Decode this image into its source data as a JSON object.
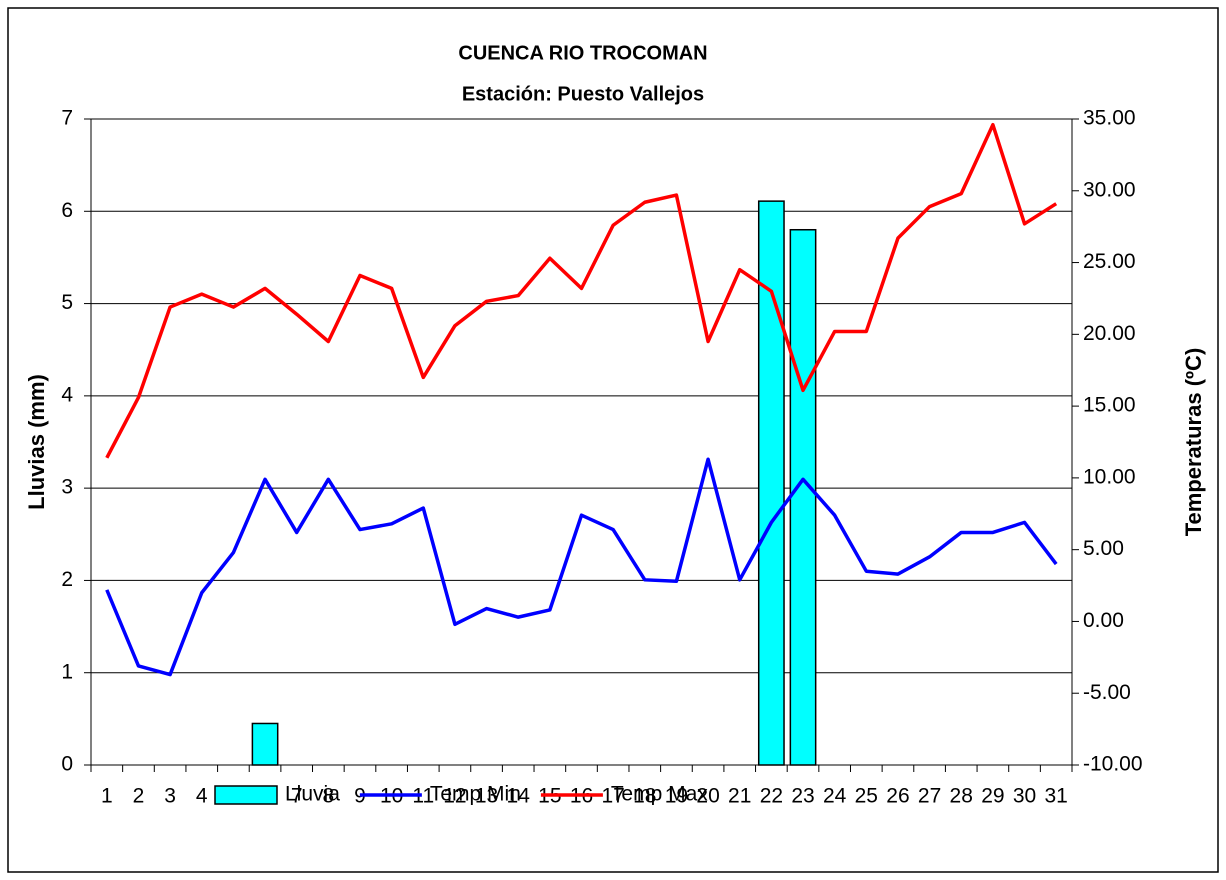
{
  "chart_data": {
    "type": "bar_line",
    "title": "CUENCA RIO TROCOMAN",
    "subtitle": "Estación: Puesto Vallejos",
    "ylabel": "Lluvias (mm)",
    "y2label": "Temperaturas (ºC)",
    "categories": [
      "1",
      "2",
      "3",
      "4",
      "5",
      "6",
      "7",
      "8",
      "9",
      "10",
      "11",
      "12",
      "13",
      "14",
      "15",
      "16",
      "17",
      "18",
      "19",
      "20",
      "21",
      "22",
      "23",
      "24",
      "25",
      "26",
      "27",
      "28",
      "29",
      "30",
      "31"
    ],
    "series": [
      {
        "name": "Lluvia",
        "type": "bar",
        "color": "#00ffff",
        "values": [
          0,
          0,
          0,
          0,
          0,
          0.45,
          0,
          0,
          0,
          0,
          0,
          0,
          0,
          0,
          0,
          0,
          0,
          0,
          0,
          0,
          0,
          6.11,
          5.8,
          0,
          0,
          0,
          0,
          0,
          0,
          0,
          0
        ]
      },
      {
        "name": "Temp Min",
        "type": "line",
        "axis": "y2",
        "color": "#0000ff",
        "values": [
          2.2,
          -3.1,
          -3.7,
          2.0,
          4.8,
          9.9,
          6.2,
          9.9,
          6.4,
          6.8,
          7.9,
          -0.2,
          0.9,
          0.3,
          0.8,
          7.4,
          6.4,
          2.9,
          2.8,
          11.3,
          2.9,
          6.9,
          9.9,
          7.4,
          3.5,
          3.3,
          4.5,
          6.2,
          6.2,
          6.9,
          4.0
        ]
      },
      {
        "name": "Temp Max",
        "type": "line",
        "axis": "y2",
        "color": "#ff0000",
        "values": [
          11.4,
          15.6,
          21.9,
          22.8,
          21.9,
          23.2,
          21.4,
          19.5,
          24.1,
          23.2,
          17.0,
          20.6,
          22.3,
          22.7,
          25.3,
          23.2,
          27.6,
          29.2,
          29.7,
          19.5,
          24.5,
          23.0,
          16.1,
          20.2,
          20.2,
          26.7,
          28.9,
          29.8,
          34.6,
          27.7,
          29.1
        ]
      }
    ],
    "ylim": [
      0,
      7
    ],
    "yticks": [
      0,
      1,
      2,
      3,
      4,
      5,
      6,
      7
    ],
    "y2lim": [
      -10,
      35
    ],
    "y2ticks": [
      {
        "value": -10,
        "label": "-10.00"
      },
      {
        "value": -5,
        "label": "-5.00"
      },
      {
        "value": 0,
        "label": "0.00"
      },
      {
        "value": 5,
        "label": "5.00"
      },
      {
        "value": 10,
        "label": "10.00"
      },
      {
        "value": 15,
        "label": "15.00"
      },
      {
        "value": 20,
        "label": "20.00"
      },
      {
        "value": 25,
        "label": "25.00"
      },
      {
        "value": 30,
        "label": "30.00"
      },
      {
        "value": 35,
        "label": "35.00"
      }
    ],
    "grid": true,
    "legend": "bottom"
  }
}
